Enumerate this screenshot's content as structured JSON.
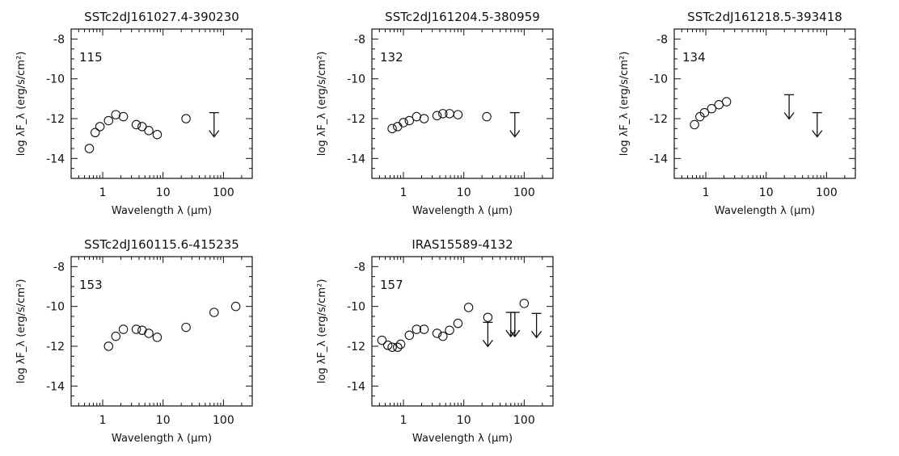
{
  "chart_data": [
    {
      "type": "scatter",
      "title": "SSTc2dJ161027.4-390230",
      "id_label": "115",
      "xlabel": "Wavelength λ (μm)",
      "ylabel": "log λF_λ (erg/s/cm²)",
      "xscale": "log",
      "xlim": [
        0.3,
        300
      ],
      "ylim": [
        -15,
        -7.5
      ],
      "xticks": [
        "1",
        "10",
        "100"
      ],
      "yticks": [
        "-8",
        "-10",
        "-12",
        "-14"
      ],
      "points": [
        [
          0.6,
          -13.5
        ],
        [
          0.75,
          -12.7
        ],
        [
          0.9,
          -12.4
        ],
        [
          1.25,
          -12.1
        ],
        [
          1.65,
          -11.8
        ],
        [
          2.2,
          -11.9
        ],
        [
          3.6,
          -12.3
        ],
        [
          4.5,
          -12.4
        ],
        [
          5.8,
          -12.6
        ],
        [
          8.0,
          -12.8
        ],
        [
          24,
          -12.0
        ]
      ],
      "upper_limits": [
        [
          70,
          -11.7
        ]
      ]
    },
    {
      "type": "scatter",
      "title": "SSTc2dJ161204.5-380959",
      "id_label": "132",
      "xlabel": "Wavelength λ (μm)",
      "ylabel": "log λF_λ (erg/s/cm²)",
      "xscale": "log",
      "xlim": [
        0.3,
        300
      ],
      "ylim": [
        -15,
        -7.5
      ],
      "xticks": [
        "1",
        "10",
        "100"
      ],
      "yticks": [
        "-8",
        "-10",
        "-12",
        "-14"
      ],
      "points": [
        [
          0.65,
          -12.5
        ],
        [
          0.8,
          -12.4
        ],
        [
          1.0,
          -12.2
        ],
        [
          1.25,
          -12.1
        ],
        [
          1.65,
          -11.9
        ],
        [
          2.2,
          -12.0
        ],
        [
          3.6,
          -11.85
        ],
        [
          4.5,
          -11.75
        ],
        [
          5.8,
          -11.75
        ],
        [
          8.0,
          -11.8
        ],
        [
          24,
          -11.9
        ]
      ],
      "upper_limits": [
        [
          70,
          -11.7
        ]
      ]
    },
    {
      "type": "scatter",
      "title": "SSTc2dJ161218.5-393418",
      "id_label": "134",
      "xlabel": "Wavelength λ (μm)",
      "ylabel": "log λF_λ (erg/s/cm²)",
      "xscale": "log",
      "xlim": [
        0.3,
        300
      ],
      "ylim": [
        -15,
        -7.5
      ],
      "xticks": [
        "1",
        "10",
        "100"
      ],
      "yticks": [
        "-8",
        "-10",
        "-12",
        "-14"
      ],
      "points": [
        [
          0.65,
          -12.3
        ],
        [
          0.8,
          -11.9
        ],
        [
          0.95,
          -11.7
        ],
        [
          1.25,
          -11.5
        ],
        [
          1.65,
          -11.3
        ],
        [
          2.2,
          -11.15
        ]
      ],
      "upper_limits": [
        [
          24,
          -10.8
        ],
        [
          70,
          -11.7
        ]
      ]
    },
    {
      "type": "scatter",
      "title": "SSTc2dJ160115.6-415235",
      "id_label": "153",
      "xlabel": "Wavelength λ (μm)",
      "ylabel": "log λF_λ (erg/s/cm²)",
      "xscale": "log",
      "xlim": [
        0.3,
        300
      ],
      "ylim": [
        -15,
        -7.5
      ],
      "xticks": [
        "1",
        "10",
        "100"
      ],
      "yticks": [
        "-8",
        "-10",
        "-12",
        "-14"
      ],
      "points": [
        [
          1.25,
          -12.0
        ],
        [
          1.65,
          -11.5
        ],
        [
          2.2,
          -11.15
        ],
        [
          3.6,
          -11.15
        ],
        [
          4.5,
          -11.2
        ],
        [
          5.8,
          -11.35
        ],
        [
          8.0,
          -11.55
        ],
        [
          24,
          -11.05
        ],
        [
          70,
          -10.3
        ],
        [
          160,
          -10.0
        ]
      ],
      "upper_limits": []
    },
    {
      "type": "scatter",
      "title": "IRAS15589-4132",
      "id_label": "157",
      "xlabel": "Wavelength λ (μm)",
      "ylabel": "log λF_λ (erg/s/cm²)",
      "xscale": "log",
      "xlim": [
        0.3,
        300
      ],
      "ylim": [
        -15,
        -7.5
      ],
      "xticks": [
        "1",
        "10",
        "100"
      ],
      "yticks": [
        "-8",
        "-10",
        "-12",
        "-14"
      ],
      "points": [
        [
          0.44,
          -11.7
        ],
        [
          0.55,
          -11.95
        ],
        [
          0.65,
          -12.05
        ],
        [
          0.8,
          -12.05
        ],
        [
          0.9,
          -11.9
        ],
        [
          1.25,
          -11.45
        ],
        [
          1.65,
          -11.15
        ],
        [
          2.2,
          -11.15
        ],
        [
          3.6,
          -11.35
        ],
        [
          4.5,
          -11.5
        ],
        [
          5.8,
          -11.2
        ],
        [
          8.0,
          -10.85
        ],
        [
          12,
          -10.05
        ],
        [
          25,
          -10.55
        ],
        [
          100,
          -9.85
        ]
      ],
      "upper_limits": [
        [
          25,
          -10.8
        ],
        [
          60,
          -10.3
        ],
        [
          70,
          -10.3
        ],
        [
          160,
          -10.35
        ]
      ]
    }
  ]
}
